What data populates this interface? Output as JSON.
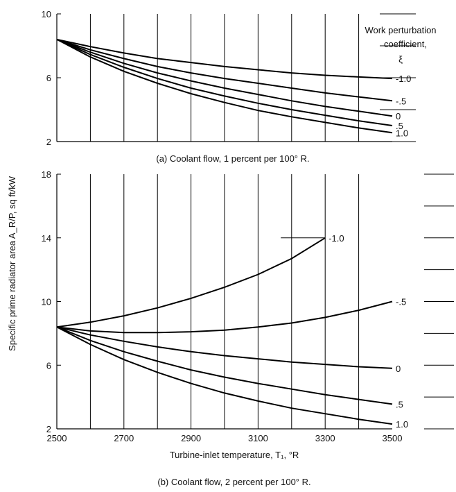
{
  "ylabel": "Specific prime radiator area  A_R/P,  sq ft/kW",
  "legend_title": [
    "Work perturbation",
    "coefficient,",
    "ξ"
  ],
  "chart_data": [
    {
      "type": "line",
      "caption": "(a) Coolant flow,  1 percent per 100° R.",
      "xlim": [
        2500,
        3500
      ],
      "ylim": [
        2,
        10
      ],
      "yticks": [
        2,
        6,
        10
      ],
      "grid": true,
      "x": [
        2500,
        2600,
        2700,
        2800,
        2900,
        3000,
        3100,
        3200,
        3300,
        3400,
        3500
      ],
      "series": [
        {
          "name": "-1.0",
          "values": [
            8.4,
            7.95,
            7.55,
            7.2,
            6.95,
            6.7,
            6.5,
            6.3,
            6.15,
            6.05,
            5.95
          ]
        },
        {
          "name": "-.5",
          "values": [
            8.4,
            7.75,
            7.2,
            6.7,
            6.3,
            5.95,
            5.65,
            5.35,
            5.05,
            4.8,
            4.55
          ]
        },
        {
          "name": "0",
          "values": [
            8.4,
            7.6,
            6.9,
            6.3,
            5.8,
            5.35,
            4.95,
            4.55,
            4.2,
            3.9,
            3.6
          ]
        },
        {
          "name": ".5",
          "values": [
            8.4,
            7.45,
            6.65,
            5.95,
            5.35,
            4.85,
            4.4,
            4.0,
            3.65,
            3.3,
            3.0
          ]
        },
        {
          "name": "1.0",
          "values": [
            8.4,
            7.3,
            6.4,
            5.65,
            5.0,
            4.45,
            3.95,
            3.55,
            3.2,
            2.85,
            2.55
          ]
        }
      ]
    },
    {
      "type": "line",
      "caption": "(b) Coolant flow,  2 percent per 100° R.",
      "xlabel": "Turbine-inlet temperature,  T₁,  °R",
      "xlim": [
        2500,
        3500
      ],
      "ylim": [
        2,
        18
      ],
      "xticks": [
        2500,
        2700,
        2900,
        3100,
        3300,
        3500
      ],
      "yticks": [
        2,
        6,
        10,
        14,
        18
      ],
      "grid": true,
      "series": [
        {
          "name": "-1.0",
          "x": [
            2500,
            2600,
            2700,
            2800,
            2900,
            3000,
            3100,
            3200,
            3300
          ],
          "values": [
            8.4,
            8.7,
            9.1,
            9.6,
            10.2,
            10.9,
            11.7,
            12.7,
            14.0
          ]
        },
        {
          "name": "-.5",
          "x": [
            2500,
            2600,
            2700,
            2800,
            2900,
            3000,
            3100,
            3200,
            3300,
            3400,
            3500
          ],
          "values": [
            8.4,
            8.15,
            8.05,
            8.05,
            8.1,
            8.2,
            8.4,
            8.65,
            9.0,
            9.45,
            10.0
          ]
        },
        {
          "name": "0",
          "x": [
            2500,
            2600,
            2700,
            2800,
            2900,
            3000,
            3100,
            3200,
            3300,
            3400,
            3500
          ],
          "values": [
            8.4,
            7.9,
            7.5,
            7.15,
            6.85,
            6.6,
            6.4,
            6.2,
            6.05,
            5.9,
            5.8
          ]
        },
        {
          "name": ".5",
          "x": [
            2500,
            2600,
            2700,
            2800,
            2900,
            3000,
            3100,
            3200,
            3300,
            3400,
            3500
          ],
          "values": [
            8.4,
            7.55,
            6.85,
            6.25,
            5.7,
            5.25,
            4.85,
            4.5,
            4.15,
            3.85,
            3.55
          ]
        },
        {
          "name": "1.0",
          "x": [
            2500,
            2600,
            2700,
            2800,
            2900,
            3000,
            3100,
            3200,
            3300,
            3400,
            3500
          ],
          "values": [
            8.4,
            7.3,
            6.35,
            5.55,
            4.85,
            4.25,
            3.75,
            3.3,
            2.95,
            2.6,
            2.3
          ]
        }
      ]
    }
  ]
}
